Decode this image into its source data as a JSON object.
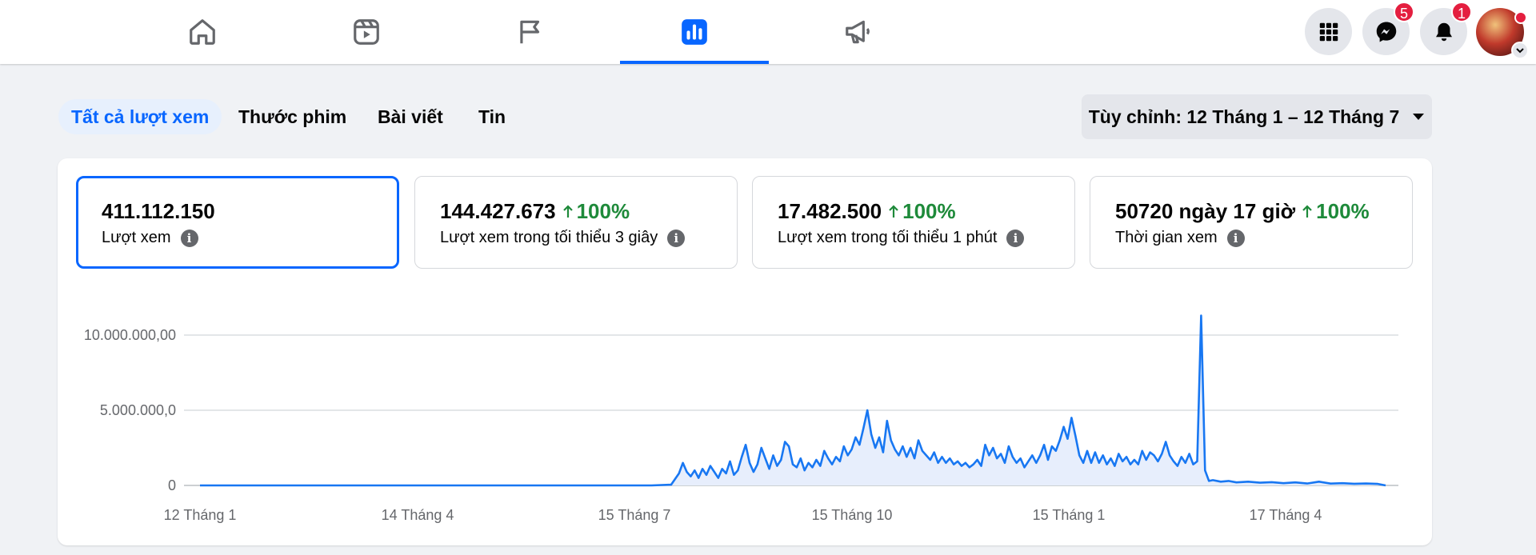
{
  "nav": {
    "tabs": [
      {
        "name": "home",
        "icon": "home-icon",
        "active": false
      },
      {
        "name": "reels",
        "icon": "reels-icon",
        "active": false
      },
      {
        "name": "pages",
        "icon": "flag-icon",
        "active": false
      },
      {
        "name": "insights",
        "icon": "bar-chart-icon",
        "active": true
      },
      {
        "name": "ads",
        "icon": "megaphone-icon",
        "active": false
      }
    ],
    "menu_icon": "grid-menu-icon",
    "messenger_badge": "5",
    "notifications_badge": "1",
    "accent": "#0866ff"
  },
  "filters": {
    "tabs": [
      "Tất cả lượt xem",
      "Thước phim",
      "Bài viết",
      "Tin"
    ],
    "active_index": 0,
    "date_range": "Tùy chỉnh: 12 Tháng 1 – 12 Tháng 7"
  },
  "metrics": [
    {
      "value": "411.112.150",
      "change": "",
      "label": "Lượt xem",
      "selected": true
    },
    {
      "value": "144.427.673",
      "change": "100%",
      "label": "Lượt xem trong tối thiểu 3 giây",
      "selected": false
    },
    {
      "value": "17.482.500",
      "change": "100%",
      "label": "Lượt xem trong tối thiểu 1 phút",
      "selected": false
    },
    {
      "value": "50720 ngày 17 giờ",
      "change": "100%",
      "label": "Thời gian xem",
      "selected": false
    }
  ],
  "chart_data": {
    "type": "area",
    "color": "#1877f2",
    "fill": "#e7eefc",
    "grid": true,
    "ylim": [
      0,
      10000000
    ],
    "yticks": [
      0,
      5000000,
      10000000
    ],
    "ytick_labels": [
      "0",
      "5.000.000,0",
      "10.000.000,00"
    ],
    "xtick_labels": [
      "12 Tháng 1",
      "14 Tháng 4",
      "15 Tháng 7",
      "15 Tháng 10",
      "15 Tháng 1",
      "17 Tháng 4"
    ],
    "x_start": "12 Tháng 1",
    "points_note_hidden": false,
    "series": [
      {
        "values": [
          [
            0,
            0
          ],
          [
            30,
            0
          ],
          [
            60,
            0
          ],
          [
            90,
            0
          ],
          [
            120,
            0
          ],
          [
            150,
            0
          ],
          [
            180,
            0
          ],
          [
            210,
            0
          ],
          [
            230,
            0
          ],
          [
            240,
            50000
          ],
          [
            244,
            800000
          ],
          [
            246,
            1500000
          ],
          [
            248,
            900000
          ],
          [
            250,
            600000
          ],
          [
            252,
            1000000
          ],
          [
            254,
            500000
          ],
          [
            256,
            1100000
          ],
          [
            258,
            700000
          ],
          [
            260,
            1300000
          ],
          [
            262,
            900000
          ],
          [
            264,
            500000
          ],
          [
            266,
            1100000
          ],
          [
            268,
            800000
          ],
          [
            270,
            1600000
          ],
          [
            272,
            700000
          ],
          [
            274,
            1000000
          ],
          [
            276,
            1900000
          ],
          [
            278,
            2700000
          ],
          [
            280,
            1500000
          ],
          [
            282,
            900000
          ],
          [
            284,
            1400000
          ],
          [
            286,
            2500000
          ],
          [
            288,
            1800000
          ],
          [
            290,
            1100000
          ],
          [
            292,
            2000000
          ],
          [
            294,
            1300000
          ],
          [
            296,
            1700000
          ],
          [
            298,
            2900000
          ],
          [
            300,
            2600000
          ],
          [
            302,
            1400000
          ],
          [
            304,
            1200000
          ],
          [
            306,
            1800000
          ],
          [
            308,
            1000000
          ],
          [
            310,
            1500000
          ],
          [
            312,
            1200000
          ],
          [
            314,
            1700000
          ],
          [
            316,
            1300000
          ],
          [
            318,
            2300000
          ],
          [
            320,
            1800000
          ],
          [
            322,
            1400000
          ],
          [
            324,
            1900000
          ],
          [
            326,
            1600000
          ],
          [
            328,
            2600000
          ],
          [
            330,
            2000000
          ],
          [
            332,
            2400000
          ],
          [
            334,
            3200000
          ],
          [
            336,
            2700000
          ],
          [
            338,
            3800000
          ],
          [
            340,
            5000000
          ],
          [
            342,
            3400000
          ],
          [
            344,
            2500000
          ],
          [
            346,
            3200000
          ],
          [
            348,
            2200000
          ],
          [
            350,
            4300000
          ],
          [
            352,
            3000000
          ],
          [
            354,
            2400000
          ],
          [
            356,
            2000000
          ],
          [
            358,
            2600000
          ],
          [
            360,
            1900000
          ],
          [
            362,
            2500000
          ],
          [
            364,
            1800000
          ],
          [
            366,
            3000000
          ],
          [
            368,
            2300000
          ],
          [
            370,
            2000000
          ],
          [
            372,
            1700000
          ],
          [
            374,
            2200000
          ],
          [
            376,
            1500000
          ],
          [
            378,
            1900000
          ],
          [
            380,
            1500000
          ],
          [
            382,
            1800000
          ],
          [
            384,
            1400000
          ],
          [
            386,
            1600000
          ],
          [
            388,
            1300000
          ],
          [
            390,
            1500000
          ],
          [
            392,
            1200000
          ],
          [
            394,
            1400000
          ],
          [
            396,
            1700000
          ],
          [
            398,
            1300000
          ],
          [
            400,
            2700000
          ],
          [
            402,
            2000000
          ],
          [
            404,
            2500000
          ],
          [
            406,
            1800000
          ],
          [
            408,
            2100000
          ],
          [
            410,
            1500000
          ],
          [
            412,
            2600000
          ],
          [
            414,
            1900000
          ],
          [
            416,
            1500000
          ],
          [
            418,
            1800000
          ],
          [
            420,
            1200000
          ],
          [
            422,
            1600000
          ],
          [
            424,
            2000000
          ],
          [
            426,
            1500000
          ],
          [
            428,
            2000000
          ],
          [
            430,
            2700000
          ],
          [
            432,
            1700000
          ],
          [
            434,
            2600000
          ],
          [
            436,
            2300000
          ],
          [
            438,
            3000000
          ],
          [
            440,
            3900000
          ],
          [
            442,
            3100000
          ],
          [
            444,
            4500000
          ],
          [
            446,
            3300000
          ],
          [
            448,
            2000000
          ],
          [
            450,
            1500000
          ],
          [
            452,
            2300000
          ],
          [
            454,
            1500000
          ],
          [
            456,
            2200000
          ],
          [
            458,
            1500000
          ],
          [
            460,
            2000000
          ],
          [
            462,
            1400000
          ],
          [
            464,
            1800000
          ],
          [
            466,
            1300000
          ],
          [
            468,
            2100000
          ],
          [
            470,
            1600000
          ],
          [
            472,
            1900000
          ],
          [
            474,
            1400000
          ],
          [
            476,
            1700000
          ],
          [
            478,
            1400000
          ],
          [
            480,
            2300000
          ],
          [
            482,
            1700000
          ],
          [
            484,
            2200000
          ],
          [
            486,
            2000000
          ],
          [
            488,
            1600000
          ],
          [
            490,
            2100000
          ],
          [
            492,
            2900000
          ],
          [
            494,
            2000000
          ],
          [
            496,
            1600000
          ],
          [
            498,
            1300000
          ],
          [
            500,
            1900000
          ],
          [
            502,
            1500000
          ],
          [
            504,
            2100000
          ],
          [
            506,
            1400000
          ],
          [
            508,
            1600000
          ],
          [
            510,
            11300000
          ],
          [
            512,
            1000000
          ],
          [
            514,
            300000
          ],
          [
            516,
            350000
          ],
          [
            520,
            250000
          ],
          [
            524,
            300000
          ],
          [
            528,
            200000
          ],
          [
            534,
            250000
          ],
          [
            540,
            180000
          ],
          [
            546,
            220000
          ],
          [
            552,
            150000
          ],
          [
            558,
            200000
          ],
          [
            564,
            130000
          ],
          [
            570,
            250000
          ],
          [
            576,
            120000
          ],
          [
            582,
            150000
          ],
          [
            588,
            110000
          ],
          [
            594,
            130000
          ],
          [
            600,
            100000
          ],
          [
            604,
            0
          ]
        ]
      }
    ]
  }
}
